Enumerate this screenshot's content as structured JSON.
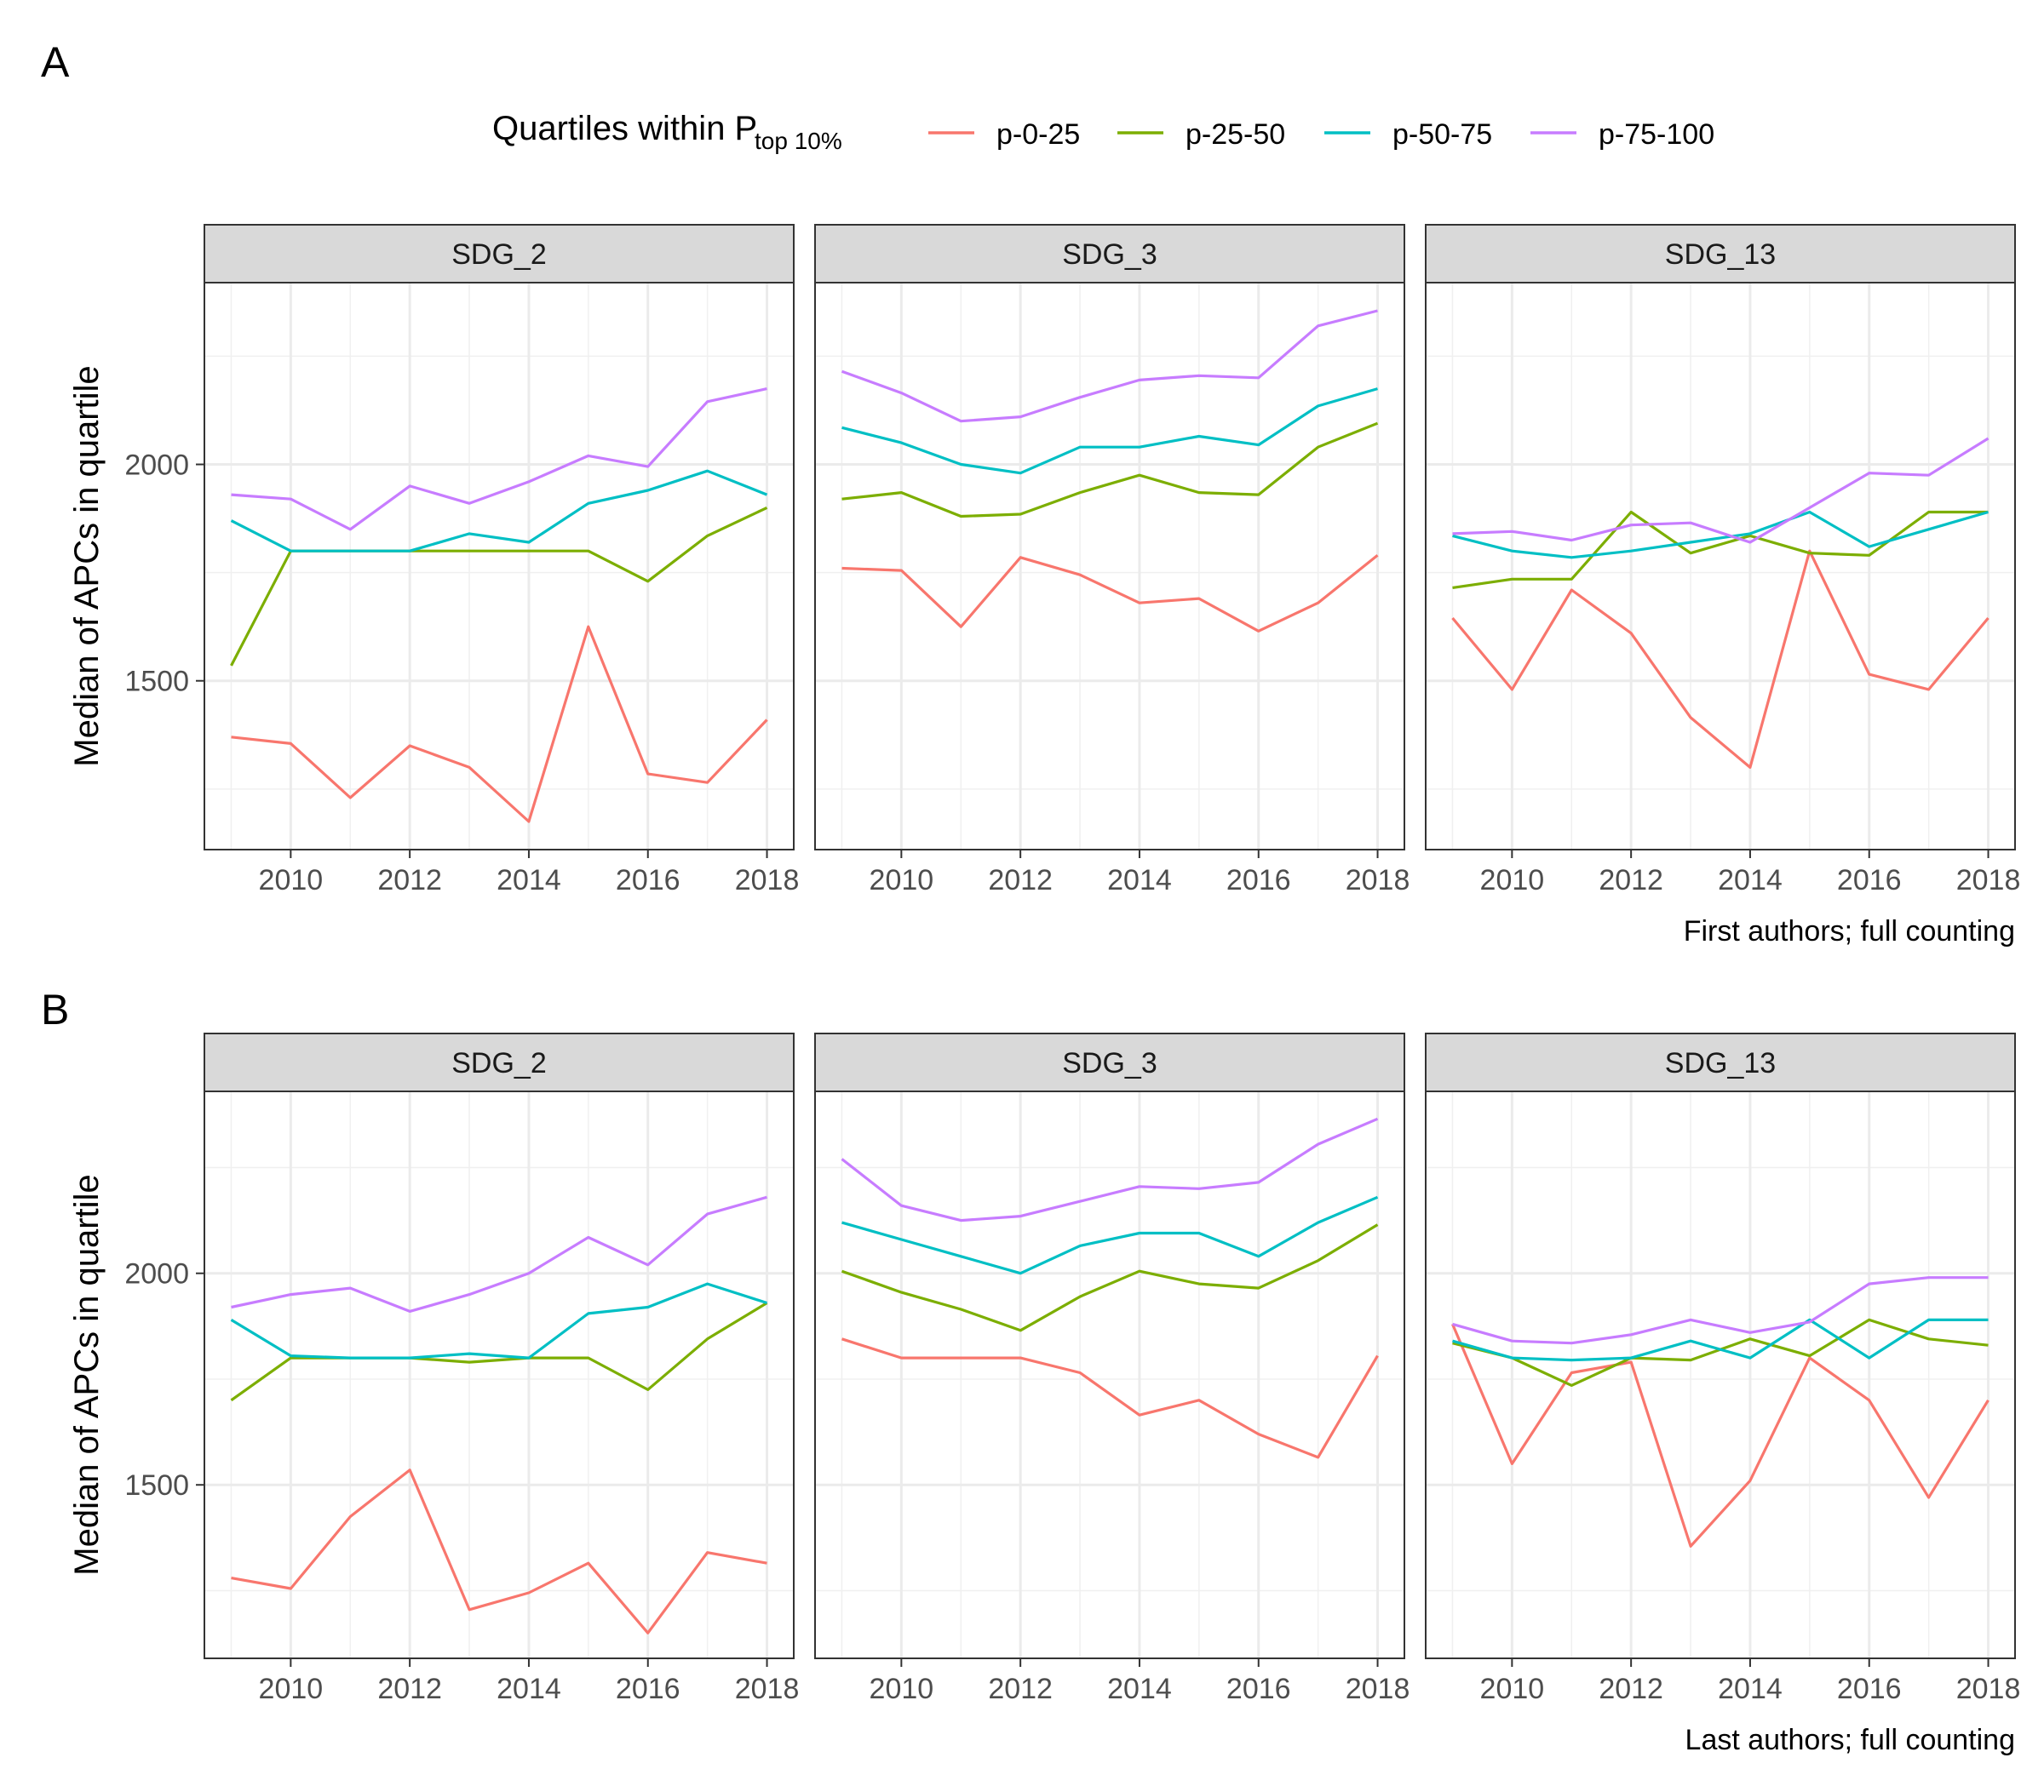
{
  "legend": {
    "title_main": "Quartiles within P",
    "title_sub": "top 10%",
    "entries": [
      {
        "label": "p-0-25",
        "color": "#F8766D"
      },
      {
        "label": "p-25-50",
        "color": "#7CAE00"
      },
      {
        "label": "p-50-75",
        "color": "#00BFC4"
      },
      {
        "label": "p-75-100",
        "color": "#C77CFF"
      }
    ]
  },
  "chart_data": [
    {
      "type": "line",
      "panel_label": "A",
      "ylabel": "Median of APCs in quartile",
      "caption": "First authors; full counting",
      "x_ticks": [
        "2010",
        "2012",
        "2014",
        "2016",
        "2018"
      ],
      "y_ticks": [
        "1500",
        "2000"
      ],
      "xlim": [
        2008.55,
        2018.45
      ],
      "ylim": [
        1110,
        2420
      ],
      "grid": true,
      "legend_position": "top",
      "facets": [
        {
          "strip": "SDG_2",
          "x": [
            2009,
            2010,
            2011,
            2012,
            2013,
            2014,
            2015,
            2016,
            2017,
            2018
          ],
          "series": [
            {
              "name": "p-0-25",
              "values": [
                1370,
                1355,
                1230,
                1350,
                1300,
                1175,
                1625,
                1285,
                1265,
                1410
              ]
            },
            {
              "name": "p-25-50",
              "values": [
                1535,
                1800,
                1800,
                1800,
                1800,
                1800,
                1800,
                1730,
                1835,
                1900
              ]
            },
            {
              "name": "p-50-75",
              "values": [
                1870,
                1800,
                1800,
                1800,
                1840,
                1820,
                1910,
                1940,
                1985,
                1930
              ]
            },
            {
              "name": "p-75-100",
              "values": [
                1930,
                1920,
                1850,
                1950,
                1910,
                1960,
                2020,
                1995,
                2145,
                2175
              ]
            }
          ]
        },
        {
          "strip": "SDG_3",
          "x": [
            2009,
            2010,
            2011,
            2012,
            2013,
            2014,
            2015,
            2016,
            2017,
            2018
          ],
          "series": [
            {
              "name": "p-0-25",
              "values": [
                1760,
                1755,
                1625,
                1785,
                1745,
                1680,
                1690,
                1615,
                1680,
                1790
              ]
            },
            {
              "name": "p-25-50",
              "values": [
                1920,
                1935,
                1880,
                1885,
                1935,
                1975,
                1935,
                1930,
                2040,
                2095
              ]
            },
            {
              "name": "p-50-75",
              "values": [
                2085,
                2050,
                2000,
                1980,
                2040,
                2040,
                2065,
                2045,
                2135,
                2175
              ]
            },
            {
              "name": "p-75-100",
              "values": [
                2215,
                2165,
                2100,
                2110,
                2155,
                2195,
                2205,
                2200,
                2320,
                2355
              ]
            }
          ]
        },
        {
          "strip": "SDG_13",
          "x": [
            2009,
            2010,
            2011,
            2012,
            2013,
            2014,
            2015,
            2016,
            2017,
            2018
          ],
          "series": [
            {
              "name": "p-0-25",
              "values": [
                1645,
                1480,
                1710,
                1610,
                1415,
                1300,
                1800,
                1515,
                1480,
                1645
              ]
            },
            {
              "name": "p-25-50",
              "values": [
                1715,
                1735,
                1735,
                1890,
                1795,
                1835,
                1795,
                1790,
                1890,
                1890
              ]
            },
            {
              "name": "p-50-75",
              "values": [
                1835,
                1800,
                1785,
                1800,
                1820,
                1840,
                1890,
                1810,
                1850,
                1890
              ]
            },
            {
              "name": "p-75-100",
              "values": [
                1840,
                1845,
                1825,
                1860,
                1865,
                1820,
                1900,
                1980,
                1975,
                2060
              ]
            }
          ]
        }
      ]
    },
    {
      "type": "line",
      "panel_label": "B",
      "ylabel": "Median of APCs in quartile",
      "caption": "Last authors; full counting",
      "x_ticks": [
        "2010",
        "2012",
        "2014",
        "2016",
        "2018"
      ],
      "y_ticks": [
        "1500",
        "2000"
      ],
      "xlim": [
        2008.55,
        2018.45
      ],
      "ylim": [
        1090,
        2430
      ],
      "grid": true,
      "legend_position": "top",
      "facets": [
        {
          "strip": "SDG_2",
          "x": [
            2009,
            2010,
            2011,
            2012,
            2013,
            2014,
            2015,
            2016,
            2017,
            2018
          ],
          "series": [
            {
              "name": "p-0-25",
              "values": [
                1280,
                1255,
                1425,
                1535,
                1205,
                1245,
                1315,
                1150,
                1340,
                1315
              ]
            },
            {
              "name": "p-25-50",
              "values": [
                1700,
                1800,
                1800,
                1800,
                1790,
                1800,
                1800,
                1725,
                1845,
                1930
              ]
            },
            {
              "name": "p-50-75",
              "values": [
                1890,
                1805,
                1800,
                1800,
                1810,
                1800,
                1905,
                1920,
                1975,
                1930
              ]
            },
            {
              "name": "p-75-100",
              "values": [
                1920,
                1950,
                1965,
                1910,
                1950,
                2000,
                2085,
                2020,
                2140,
                2180
              ]
            }
          ]
        },
        {
          "strip": "SDG_3",
          "x": [
            2009,
            2010,
            2011,
            2012,
            2013,
            2014,
            2015,
            2016,
            2017,
            2018
          ],
          "series": [
            {
              "name": "p-0-25",
              "values": [
                1845,
                1800,
                1800,
                1800,
                1765,
                1665,
                1700,
                1620,
                1565,
                1805
              ]
            },
            {
              "name": "p-25-50",
              "values": [
                2005,
                1955,
                1915,
                1865,
                1945,
                2005,
                1975,
                1965,
                2030,
                2115
              ]
            },
            {
              "name": "p-50-75",
              "values": [
                2120,
                2080,
                2040,
                2000,
                2065,
                2095,
                2095,
                2040,
                2120,
                2180
              ]
            },
            {
              "name": "p-75-100",
              "values": [
                2270,
                2160,
                2125,
                2135,
                2170,
                2205,
                2200,
                2215,
                2305,
                2365
              ]
            }
          ]
        },
        {
          "strip": "SDG_13",
          "x": [
            2009,
            2010,
            2011,
            2012,
            2013,
            2014,
            2015,
            2016,
            2017,
            2018
          ],
          "series": [
            {
              "name": "p-0-25",
              "values": [
                1880,
                1550,
                1765,
                1790,
                1355,
                1510,
                1800,
                1700,
                1470,
                1700
              ]
            },
            {
              "name": "p-25-50",
              "values": [
                1835,
                1800,
                1735,
                1800,
                1795,
                1845,
                1805,
                1890,
                1845,
                1830
              ]
            },
            {
              "name": "p-50-75",
              "values": [
                1840,
                1800,
                1795,
                1800,
                1840,
                1800,
                1890,
                1800,
                1890,
                1890
              ]
            },
            {
              "name": "p-75-100",
              "values": [
                1880,
                1840,
                1835,
                1855,
                1890,
                1860,
                1885,
                1975,
                1990,
                1990
              ]
            }
          ]
        }
      ]
    }
  ]
}
